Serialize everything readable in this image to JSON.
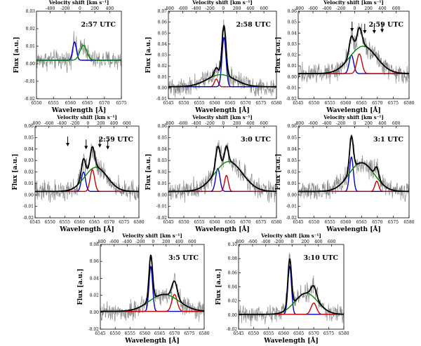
{
  "figure": {
    "velocity_axis_label": "Velocity shift [km s⁻¹]",
    "wavelength_axis_label": "Wavelength [Å]",
    "flux_axis_label": "Flux [a.u.]"
  },
  "chart_data": [
    {
      "type": "line",
      "title": "2:57 UTC",
      "xlim": [
        6550,
        6575
      ],
      "xticks": [
        6550,
        6555,
        6560,
        6565,
        6570,
        6575
      ],
      "ylim": [
        -0.02,
        0.03
      ],
      "yticks": [
        -0.02,
        -0.01,
        0.0,
        0.01,
        0.02,
        0.03
      ],
      "vticks": [
        -400,
        -200,
        0,
        200,
        400
      ],
      "series": [
        {
          "color": "#0000cc",
          "components": [
            {
              "center": 6561.2,
              "sigma": 0.55,
              "amp": 0.0105
            }
          ],
          "baseline": 0.002
        },
        {
          "color": "#008800",
          "components": [
            {
              "center": 6563.8,
              "sigma": 1.0,
              "amp": 0.0085
            }
          ],
          "baseline": 0.002
        }
      ],
      "arrows": []
    },
    {
      "type": "line",
      "title": "2:58 UTC",
      "xlim": [
        6545,
        6580
      ],
      "xticks": [
        6545,
        6550,
        6555,
        6560,
        6565,
        6570,
        6575,
        6580
      ],
      "ylim": [
        -0.01,
        0.07
      ],
      "yticks": [
        -0.01,
        0.0,
        0.01,
        0.02,
        0.03,
        0.04,
        0.05,
        0.06,
        0.07
      ],
      "vticks": [
        -800,
        -600,
        -400,
        -200,
        0,
        200,
        400,
        600
      ],
      "series": [
        {
          "color": "#cc0000",
          "components": [
            {
              "center": 6560.5,
              "sigma": 0.6,
              "amp": 0.007
            }
          ],
          "baseline": 0.001
        },
        {
          "color": "#0000cc",
          "components": [
            {
              "center": 6563.0,
              "sigma": 0.65,
              "amp": 0.045
            }
          ],
          "baseline": 0.001
        },
        {
          "color": "#008800",
          "components": [
            {
              "center": 6562.0,
              "sigma": 4.5,
              "amp": 0.011
            }
          ],
          "baseline": 0.001
        },
        {
          "color": "#000000",
          "components": [
            {
              "center": 6560.5,
              "sigma": 0.6,
              "amp": 0.007
            },
            {
              "center": 6563.0,
              "sigma": 0.65,
              "amp": 0.045
            },
            {
              "center": 6562.0,
              "sigma": 4.5,
              "amp": 0.011
            }
          ],
          "baseline": 0.001
        }
      ],
      "arrows": []
    },
    {
      "type": "line",
      "title": "2:59 UTC",
      "xlim": [
        6545,
        6580
      ],
      "xticks": [
        6545,
        6550,
        6555,
        6560,
        6565,
        6570,
        6575,
        6580
      ],
      "ylim": [
        -0.02,
        0.06
      ],
      "yticks": [
        -0.02,
        -0.01,
        0.0,
        0.01,
        0.02,
        0.03,
        0.04,
        0.05,
        0.06
      ],
      "vticks": [
        -800,
        -600,
        -400,
        -200,
        0,
        200,
        400,
        600
      ],
      "series": [
        {
          "color": "#0000cc",
          "components": [
            {
              "center": 6561.8,
              "sigma": 0.7,
              "amp": 0.017
            }
          ],
          "baseline": 0.003
        },
        {
          "color": "#cc0000",
          "components": [
            {
              "center": 6564.3,
              "sigma": 0.8,
              "amp": 0.018
            }
          ],
          "baseline": 0.003
        },
        {
          "color": "#008800",
          "components": [
            {
              "center": 6565.5,
              "sigma": 4.2,
              "amp": 0.025
            }
          ],
          "baseline": 0.003
        },
        {
          "color": "#000000",
          "components": [
            {
              "center": 6561.8,
              "sigma": 0.7,
              "amp": 0.017
            },
            {
              "center": 6564.3,
              "sigma": 0.8,
              "amp": 0.018
            },
            {
              "center": 6565.5,
              "sigma": 4.2,
              "amp": 0.025
            }
          ],
          "baseline": 0.003
        }
      ],
      "arrows": [
        6562,
        6566,
        6569,
        6571.5
      ]
    },
    {
      "type": "line",
      "title": "2:59 UTC",
      "xlim": [
        6545,
        6580
      ],
      "xticks": [
        6545,
        6550,
        6555,
        6560,
        6565,
        6570,
        6575,
        6580
      ],
      "ylim": [
        -0.02,
        0.06
      ],
      "yticks": [
        -0.02,
        -0.01,
        0.0,
        0.01,
        0.02,
        0.03,
        0.04,
        0.05,
        0.06
      ],
      "vticks": [
        -800,
        -600,
        -400,
        -200,
        0,
        200,
        400,
        600
      ],
      "series": [
        {
          "color": "#0000cc",
          "components": [
            {
              "center": 6561.3,
              "sigma": 0.7,
              "amp": 0.017
            }
          ],
          "baseline": 0.003
        },
        {
          "color": "#cc0000",
          "components": [
            {
              "center": 6564.3,
              "sigma": 0.75,
              "amp": 0.019
            }
          ],
          "baseline": 0.003
        },
        {
          "color": "#008800",
          "components": [
            {
              "center": 6565.5,
              "sigma": 3.8,
              "amp": 0.021
            }
          ],
          "baseline": 0.003
        },
        {
          "color": "#000000",
          "components": [
            {
              "center": 6561.3,
              "sigma": 0.7,
              "amp": 0.017
            },
            {
              "center": 6564.3,
              "sigma": 0.75,
              "amp": 0.019
            },
            {
              "center": 6565.5,
              "sigma": 3.8,
              "amp": 0.021
            }
          ],
          "baseline": 0.003
        }
      ],
      "arrows": [
        6556,
        6562.2,
        6566.8,
        6569.5
      ]
    },
    {
      "type": "line",
      "title": "3:0 UTC",
      "xlim": [
        6545,
        6580
      ],
      "xticks": [
        6545,
        6550,
        6555,
        6560,
        6565,
        6570,
        6575,
        6580
      ],
      "ylim": [
        -0.02,
        0.06
      ],
      "yticks": [
        -0.02,
        -0.01,
        0.0,
        0.01,
        0.02,
        0.03,
        0.04,
        0.05,
        0.06
      ],
      "vticks": [
        -800,
        -600,
        -400,
        -200,
        0,
        200,
        400,
        600
      ],
      "series": [
        {
          "color": "#0000cc",
          "components": [
            {
              "center": 6561.0,
              "sigma": 0.7,
              "amp": 0.02
            }
          ],
          "baseline": 0.003
        },
        {
          "color": "#cc0000",
          "components": [
            {
              "center": 6563.8,
              "sigma": 0.6,
              "amp": 0.014
            }
          ],
          "baseline": 0.003
        },
        {
          "color": "#008800",
          "components": [
            {
              "center": 6564.5,
              "sigma": 4.5,
              "amp": 0.026
            }
          ],
          "baseline": 0.003
        },
        {
          "color": "#000000",
          "components": [
            {
              "center": 6561.0,
              "sigma": 0.7,
              "amp": 0.02
            },
            {
              "center": 6563.8,
              "sigma": 0.6,
              "amp": 0.014
            },
            {
              "center": 6564.5,
              "sigma": 4.5,
              "amp": 0.026
            }
          ],
          "baseline": 0.003
        }
      ],
      "arrows": []
    },
    {
      "type": "line",
      "title": "3:1 UTC",
      "xlim": [
        6545,
        6580
      ],
      "xticks": [
        6545,
        6550,
        6555,
        6560,
        6565,
        6570,
        6575,
        6580
      ],
      "ylim": [
        -0.02,
        0.06
      ],
      "yticks": [
        -0.02,
        -0.01,
        0.0,
        0.01,
        0.02,
        0.03,
        0.04,
        0.05,
        0.06
      ],
      "vticks": [
        -800,
        -600,
        -400,
        -200,
        0,
        200,
        400,
        600
      ],
      "series": [
        {
          "color": "#0000cc",
          "components": [
            {
              "center": 6561.8,
              "sigma": 0.6,
              "amp": 0.03
            }
          ],
          "baseline": 0.003
        },
        {
          "color": "#cc0000",
          "components": [
            {
              "center": 6569.8,
              "sigma": 0.6,
              "amp": 0.009
            }
          ],
          "baseline": 0.003
        },
        {
          "color": "#008800",
          "components": [
            {
              "center": 6565.0,
              "sigma": 4.0,
              "amp": 0.025
            }
          ],
          "baseline": 0.003
        },
        {
          "color": "#000000",
          "components": [
            {
              "center": 6561.8,
              "sigma": 0.6,
              "amp": 0.03
            },
            {
              "center": 6569.8,
              "sigma": 0.6,
              "amp": 0.009
            },
            {
              "center": 6565.0,
              "sigma": 4.0,
              "amp": 0.025
            }
          ],
          "baseline": 0.003
        }
      ],
      "arrows": []
    },
    {
      "type": "line",
      "title": "3:5 UTC",
      "xlim": [
        6545,
        6580
      ],
      "xticks": [
        6545,
        6550,
        6555,
        6560,
        6565,
        6570,
        6575,
        6580
      ],
      "ylim": [
        -0.02,
        0.08
      ],
      "yticks": [
        -0.02,
        0.0,
        0.02,
        0.04,
        0.06,
        0.08
      ],
      "vticks": [
        -800,
        -600,
        -400,
        -200,
        0,
        200,
        400,
        600
      ],
      "series": [
        {
          "color": "#0000cc",
          "components": [
            {
              "center": 6562.0,
              "sigma": 0.6,
              "amp": 0.053
            }
          ],
          "baseline": 0.001
        },
        {
          "color": "#cc0000",
          "components": [
            {
              "center": 6570.0,
              "sigma": 0.9,
              "amp": 0.02
            }
          ],
          "baseline": 0.001
        },
        {
          "color": "#008800",
          "components": [
            {
              "center": 6566.5,
              "sigma": 5.0,
              "amp": 0.02
            }
          ],
          "baseline": 0.001
        },
        {
          "color": "#000000",
          "components": [
            {
              "center": 6562.0,
              "sigma": 0.6,
              "amp": 0.053
            },
            {
              "center": 6570.0,
              "sigma": 0.9,
              "amp": 0.02
            },
            {
              "center": 6566.5,
              "sigma": 5.0,
              "amp": 0.02
            }
          ],
          "baseline": 0.001
        }
      ],
      "arrows": []
    },
    {
      "type": "line",
      "title": "3:10 UTC",
      "xlim": [
        6545,
        6580
      ],
      "xticks": [
        6545,
        6550,
        6555,
        6560,
        6565,
        6570,
        6575,
        6580
      ],
      "ylim": [
        -0.02,
        0.1
      ],
      "yticks": [
        -0.02,
        0.0,
        0.02,
        0.04,
        0.06,
        0.08,
        0.1
      ],
      "vticks": [
        -800,
        -600,
        -400,
        -200,
        0,
        200,
        400,
        600
      ],
      "series": [
        {
          "color": "#0000cc",
          "components": [
            {
              "center": 6562.0,
              "sigma": 0.6,
              "amp": 0.068
            }
          ],
          "baseline": 0.001
        },
        {
          "color": "#cc0000",
          "components": [
            {
              "center": 6570.0,
              "sigma": 0.9,
              "amp": 0.016
            }
          ],
          "baseline": 0.001
        },
        {
          "color": "#008800",
          "components": [
            {
              "center": 6567.5,
              "sigma": 3.8,
              "amp": 0.03
            }
          ],
          "baseline": 0.001
        },
        {
          "color": "#000000",
          "components": [
            {
              "center": 6562.0,
              "sigma": 0.6,
              "amp": 0.068
            },
            {
              "center": 6570.0,
              "sigma": 0.9,
              "amp": 0.016
            },
            {
              "center": 6567.5,
              "sigma": 3.8,
              "amp": 0.03
            }
          ],
          "baseline": 0.001
        }
      ],
      "arrows": []
    }
  ]
}
